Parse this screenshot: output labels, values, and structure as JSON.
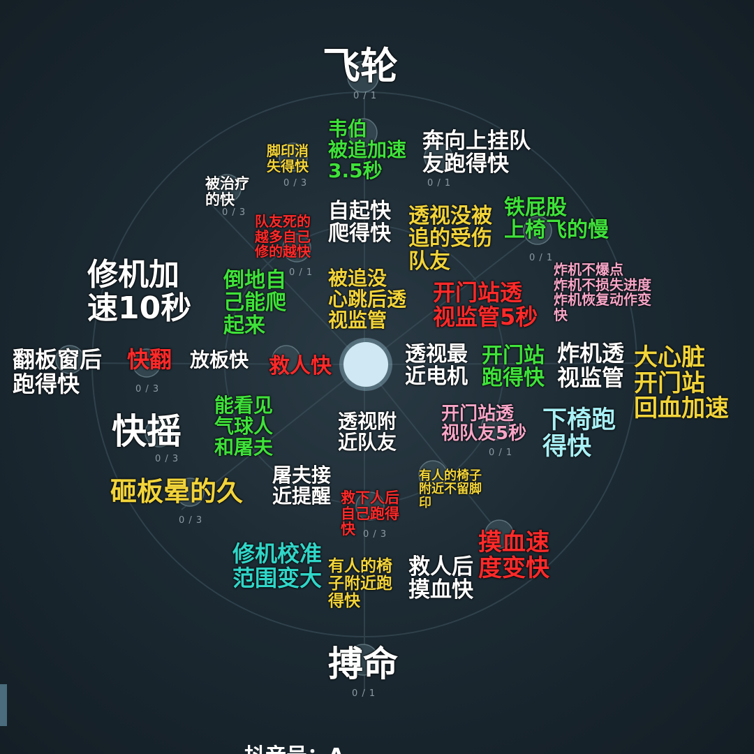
{
  "labels": [
    {
      "lines": [
        "飞轮"
      ]
    },
    {
      "lines": [
        "韦伯",
        "被追加速",
        "3.5秒"
      ]
    },
    {
      "lines": [
        "脚印消",
        "失得快"
      ]
    },
    {
      "lines": [
        "奔向上挂队",
        "友跑得快"
      ]
    },
    {
      "lines": [
        "被治疗",
        "的快"
      ]
    },
    {
      "lines": [
        "自起快",
        "爬得快"
      ]
    },
    {
      "lines": [
        "队友死的",
        "越多自己",
        "修的越快"
      ]
    },
    {
      "lines": [
        "透视没被",
        "追的受伤",
        "队友"
      ]
    },
    {
      "lines": [
        "铁屁股",
        "上椅飞的慢"
      ]
    },
    {
      "lines": [
        "修机加",
        "速10秒"
      ]
    },
    {
      "lines": [
        "倒地自",
        "己能爬",
        "起来"
      ]
    },
    {
      "lines": [
        "被追没",
        "心跳后透",
        "视监管"
      ]
    },
    {
      "lines": [
        "开门站透",
        "视监管5秒"
      ]
    },
    {
      "lines": [
        "炸机不爆点",
        "炸机不损失进度",
        "炸机恢复动作变",
        "快"
      ]
    },
    {
      "lines": [
        "翻板窗后",
        "跑得快"
      ]
    },
    {
      "lines": [
        "快翻"
      ]
    },
    {
      "lines": [
        "放板快"
      ]
    },
    {
      "lines": [
        "救人快"
      ]
    },
    {
      "lines": [
        "透视最",
        "近电机"
      ]
    },
    {
      "lines": [
        "开门站",
        "跑得快"
      ]
    },
    {
      "lines": [
        "炸机透",
        "视监管"
      ]
    },
    {
      "lines": [
        "大心脏",
        "开门站",
        "回血加速"
      ]
    },
    {
      "lines": [
        "快摇"
      ]
    },
    {
      "lines": [
        "能看见",
        "气球人",
        "和屠夫"
      ]
    },
    {
      "lines": [
        "透视附",
        "近队友"
      ]
    },
    {
      "lines": [
        "开门站透",
        "视队友5秒"
      ]
    },
    {
      "lines": [
        "下椅跑",
        "得快"
      ]
    },
    {
      "lines": [
        "砸板晕的久"
      ]
    },
    {
      "lines": [
        "屠夫接",
        "近提醒"
      ]
    },
    {
      "lines": [
        "有人的椅子",
        "附近不留脚",
        "印"
      ]
    },
    {
      "lines": [
        "救下人后",
        "自己跑得",
        "快"
      ]
    },
    {
      "lines": [
        "摸血速",
        "度变快"
      ]
    },
    {
      "lines": [
        "修机校准",
        "范围变大"
      ]
    },
    {
      "lines": [
        "有人的椅",
        "子附近跑",
        "得快"
      ]
    },
    {
      "lines": [
        "救人后",
        "摸血快"
      ]
    },
    {
      "lines": [
        "搏命"
      ]
    }
  ],
  "counters": [
    "0 / 1",
    "0 / 1",
    "0 / 3",
    "0 / 3",
    "0 / 1",
    "0 / 1",
    "0 / 3",
    "0 / 3",
    "0 / 3",
    "0 / 1",
    "0 / 3",
    "0 / 1"
  ],
  "watermark": "抖音号：A"
}
